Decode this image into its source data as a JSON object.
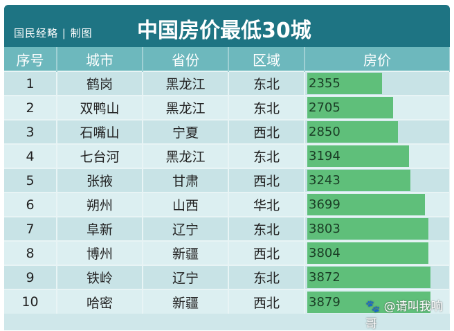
{
  "header": {
    "brand": "国民经略 | 制图",
    "title": "中国房价最低30城"
  },
  "columns": [
    "序号",
    "城市",
    "省份",
    "区域",
    "房价"
  ],
  "rows": [
    {
      "no": "1",
      "city": "鹤岗",
      "province": "黑龙江",
      "region": "东北",
      "price": 2355
    },
    {
      "no": "2",
      "city": "双鸭山",
      "province": "黑龙江",
      "region": "东北",
      "price": 2705
    },
    {
      "no": "3",
      "city": "石嘴山",
      "province": "宁夏",
      "region": "西北",
      "price": 2850
    },
    {
      "no": "4",
      "city": "七台河",
      "province": "黑龙江",
      "region": "东北",
      "price": 3194
    },
    {
      "no": "5",
      "city": "张掖",
      "province": "甘肃",
      "region": "西北",
      "price": 3243
    },
    {
      "no": "6",
      "city": "朔州",
      "province": "山西",
      "region": "华北",
      "price": 3699
    },
    {
      "no": "7",
      "city": "阜新",
      "province": "辽宁",
      "region": "东北",
      "price": 3803
    },
    {
      "no": "8",
      "city": "博州",
      "province": "新疆",
      "region": "西北",
      "price": 3804
    },
    {
      "no": "9",
      "city": "铁岭",
      "province": "辽宁",
      "region": "东北",
      "price": 3872
    },
    {
      "no": "10",
      "city": "哈密",
      "province": "新疆",
      "region": "西北",
      "price": 3879
    }
  ],
  "colors": {
    "header": "#1e7483",
    "column_header": "#6db8bd",
    "bar": "#5fbf7a"
  },
  "watermark": "@请叫我响哥",
  "watermark_icon": "paw-icon"
}
